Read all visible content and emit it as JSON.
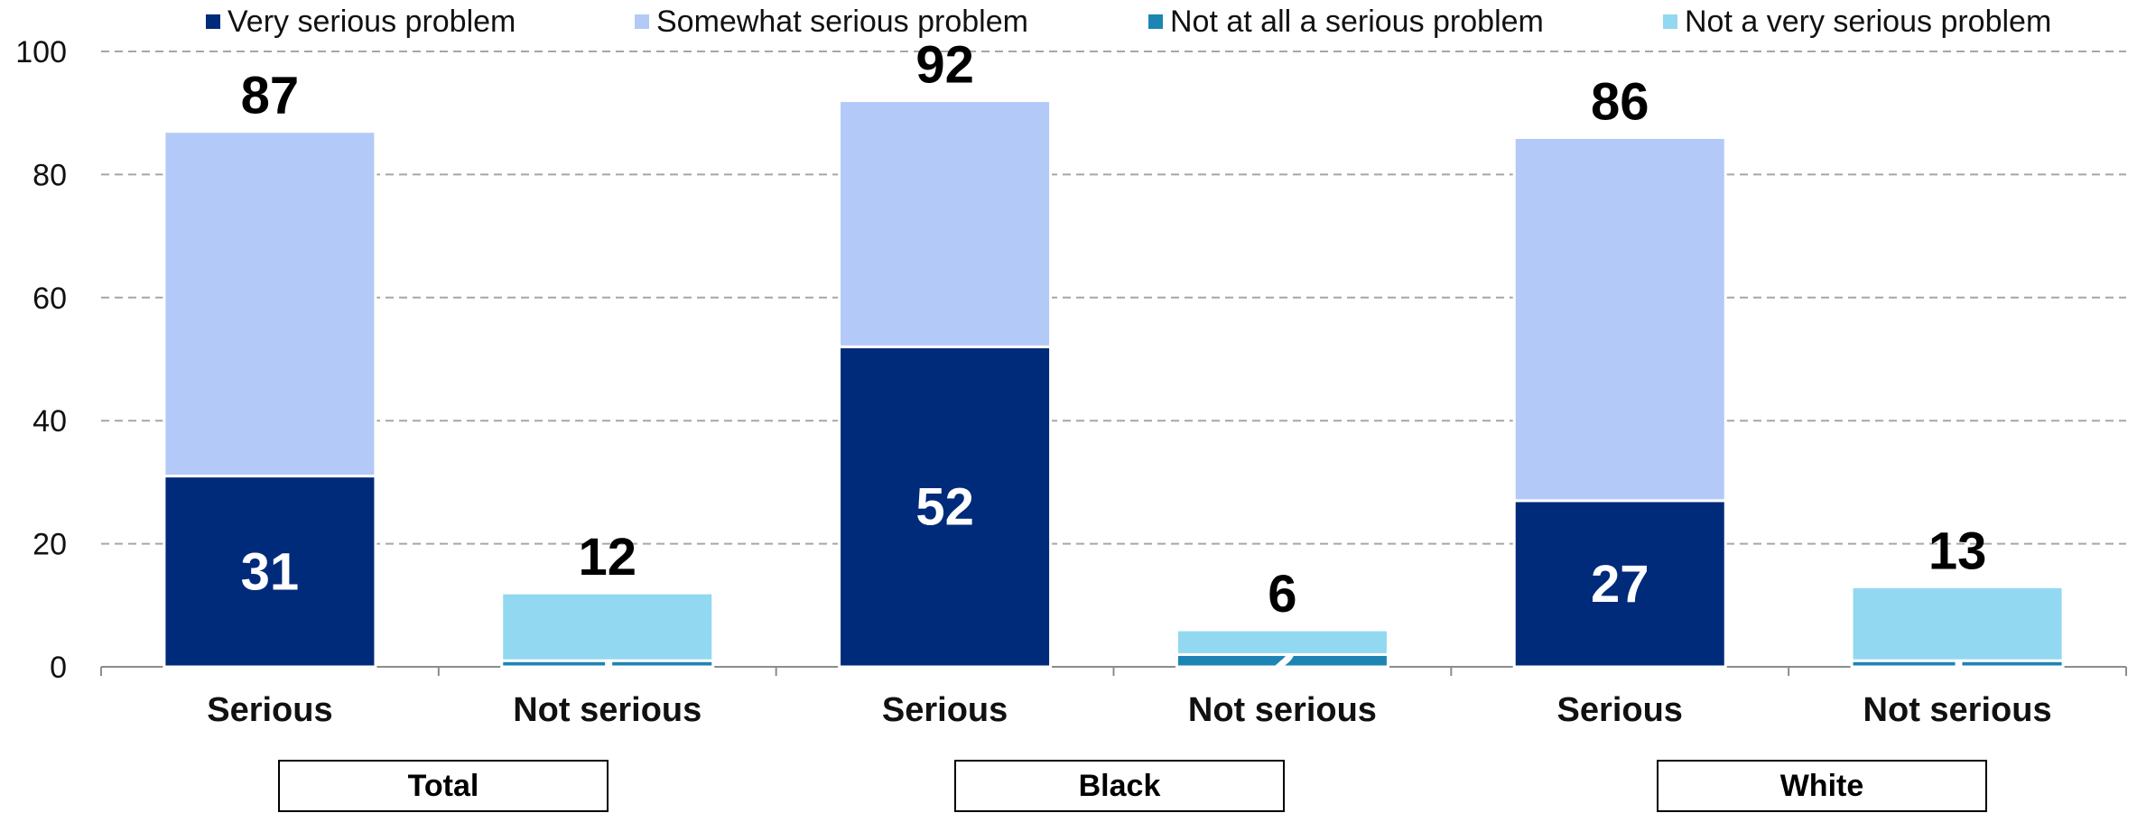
{
  "chart_data": {
    "type": "bar",
    "stacked": true,
    "ylim": [
      0,
      100
    ],
    "yticks": [
      0,
      20,
      40,
      60,
      80,
      100
    ],
    "grid": true,
    "legend_position": "top",
    "categories": [
      "Serious",
      "Not serious",
      "Serious",
      "Not serious",
      "Serious",
      "Not serious"
    ],
    "groups": [
      {
        "label": "Total",
        "categories": [
          0,
          1
        ]
      },
      {
        "label": "Black",
        "categories": [
          2,
          3
        ]
      },
      {
        "label": "White",
        "categories": [
          4,
          5
        ]
      }
    ],
    "series": [
      {
        "name": "Very serious problem",
        "color": "#002a7a",
        "values": [
          31,
          null,
          52,
          null,
          27,
          null
        ],
        "labels": [
          "31",
          "",
          "52",
          "",
          "27",
          ""
        ]
      },
      {
        "name": "Somewhat serious problem",
        "color": "#b3c9f7",
        "values": [
          56,
          null,
          40,
          null,
          59,
          null
        ],
        "labels": [
          "",
          "",
          "",
          "",
          "",
          ""
        ]
      },
      {
        "name": "Not at all a serious problem",
        "color": "#1d85b4",
        "values": [
          null,
          1,
          null,
          2,
          null,
          1
        ],
        "labels": [
          "",
          "1",
          "",
          "2",
          "",
          "1"
        ]
      },
      {
        "name": "Not a very serious problem",
        "color": "#92d8f0",
        "values": [
          null,
          11,
          null,
          4,
          null,
          12
        ],
        "labels": [
          "",
          "",
          "",
          "",
          "",
          ""
        ]
      }
    ],
    "totals": [
      "87",
      "12",
      "92",
      "6",
      "86",
      "13"
    ]
  }
}
